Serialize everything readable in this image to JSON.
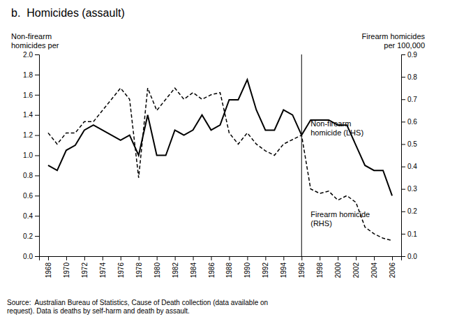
{
  "chart_data": {
    "type": "line",
    "title": "b.  Homicides (assault)",
    "y_label": "Non-firearm\nhomicides per",
    "y2_label": "Firearm homicides\nper 100,000",
    "source": "Source:  Australian Bureau of Statistics, Cause of Death collection (data available on\nrequest). Data is deaths by self-harm and death by assault.",
    "x": [
      1968,
      1969,
      1970,
      1971,
      1972,
      1973,
      1974,
      1975,
      1976,
      1977,
      1978,
      1979,
      1980,
      1981,
      1982,
      1983,
      1984,
      1985,
      1986,
      1987,
      1988,
      1989,
      1990,
      1991,
      1992,
      1993,
      1994,
      1995,
      1996,
      1997,
      1998,
      1999,
      2000,
      2001,
      2002,
      2003,
      2004,
      2005,
      2006
    ],
    "series": [
      {
        "name": "Non-firearm homicide (LHS)",
        "color": "#000000",
        "line_style": "solid",
        "values": [
          0.9,
          0.85,
          1.05,
          1.1,
          1.25,
          1.3,
          1.25,
          1.2,
          1.15,
          1.2,
          1.0,
          1.4,
          1.0,
          1.0,
          1.25,
          1.2,
          1.25,
          1.4,
          1.25,
          1.3,
          1.55,
          1.55,
          1.75,
          1.45,
          1.25,
          1.25,
          1.45,
          1.4,
          1.2,
          1.35,
          1.35,
          1.35,
          1.3,
          1.3,
          1.1,
          0.9,
          0.85,
          0.85,
          0.6
        ]
      },
      {
        "name": "Firearm homicide (RHS)",
        "color": "#000000",
        "line_style": "dashed",
        "axis": "y2",
        "values": [
          0.55,
          0.5,
          0.55,
          0.55,
          0.6,
          0.6,
          0.65,
          0.7,
          0.75,
          0.7,
          0.35,
          0.75,
          0.65,
          0.7,
          0.75,
          0.7,
          0.73,
          0.7,
          0.72,
          0.73,
          0.55,
          0.5,
          0.55,
          0.5,
          0.47,
          0.45,
          0.5,
          0.52,
          0.54,
          0.3,
          0.28,
          0.29,
          0.25,
          0.27,
          0.24,
          0.13,
          0.1,
          0.08,
          0.07
        ]
      }
    ],
    "vlines": [
      1996
    ],
    "annotations": [
      {
        "text": "Non-firearm\nhomicide (LHS)",
        "x": 1997,
        "y": 1.35
      },
      {
        "text": "Firearm homicide\n(RHS)",
        "x": 1997,
        "y": 0.45
      }
    ],
    "xlim": [
      1967,
      2007
    ],
    "xticks": [
      1968,
      1970,
      1972,
      1974,
      1976,
      1978,
      1980,
      1982,
      1984,
      1986,
      1988,
      1990,
      1992,
      1994,
      1996,
      1998,
      2000,
      2002,
      2004,
      2006
    ],
    "ylim": [
      0,
      2.0
    ],
    "yticks": [
      {
        "value": 0,
        "label": "0.0"
      },
      0.2,
      0.4,
      0.6,
      0.8,
      {
        "value": 1.0,
        "label": "1.0"
      },
      1.2,
      1.4,
      1.6,
      1.8,
      {
        "value": 2.0,
        "label": "2.0"
      }
    ],
    "y2lim": [
      0,
      0.9
    ],
    "y2ticks": [
      {
        "value": 0,
        "label": "0.0"
      },
      0.1,
      0.2,
      0.3,
      0.4,
      0.5,
      0.6,
      0.7,
      0.8,
      0.9
    ],
    "grid": false
  }
}
